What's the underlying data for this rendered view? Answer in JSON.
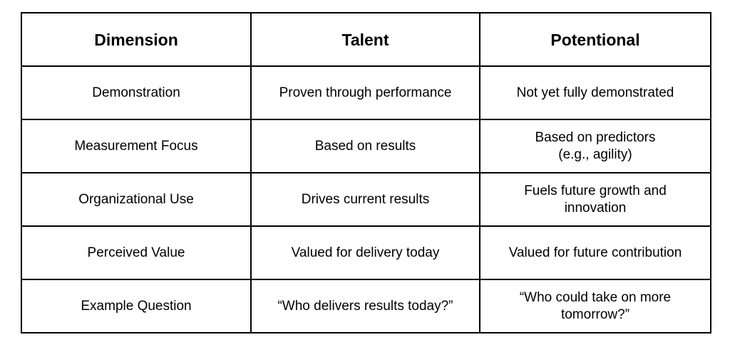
{
  "table": {
    "headers": [
      "Dimension",
      "Talent",
      "Potentional"
    ],
    "rows": [
      [
        [
          "Demonstration"
        ],
        [
          "Proven through performance"
        ],
        [
          "Not yet fully demonstrated"
        ]
      ],
      [
        [
          "Measurement Focus"
        ],
        [
          "Based on results"
        ],
        [
          "Based on predictors",
          "(e.g., agility)"
        ]
      ],
      [
        [
          "Organizational Use"
        ],
        [
          "Drives current results"
        ],
        [
          "Fuels future growth and",
          "innovation"
        ]
      ],
      [
        [
          "Perceived Value"
        ],
        [
          "Valued for delivery today"
        ],
        [
          "Valued for future contribution"
        ]
      ],
      [
        [
          "Example Question"
        ],
        [
          "“Who delivers results today?”"
        ],
        [
          "“Who could take on more",
          "tomorrow?”"
        ]
      ]
    ]
  }
}
